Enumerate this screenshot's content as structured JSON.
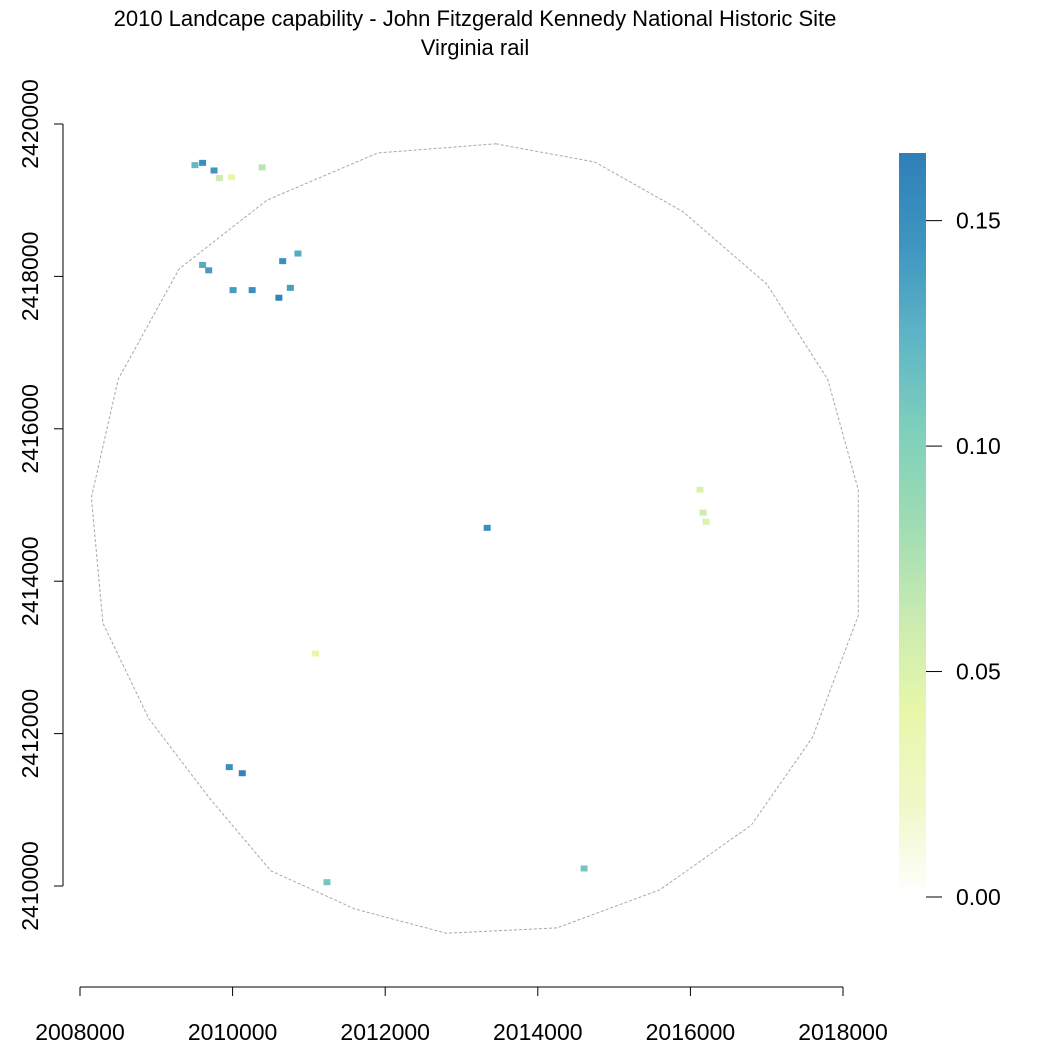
{
  "title": "2010 Landcape capability - John Fitzgerald Kennedy National Historic Site",
  "subtitle": "Virginia rail",
  "chart_data": {
    "type": "heatmap",
    "x_ticks": [
      2008000,
      2010000,
      2012000,
      2014000,
      2016000,
      2018000
    ],
    "y_ticks": [
      2410000,
      2412000,
      2414000,
      2416000,
      2418000,
      2420000
    ],
    "xlim": [
      2008000,
      2018000
    ],
    "ylim": [
      2410000,
      2420000
    ],
    "legend": {
      "position": "right",
      "min": 0.0,
      "max": 0.165,
      "ticks": [
        0.0,
        0.05,
        0.1,
        0.15
      ],
      "tick_labels": [
        "0.00",
        "0.05",
        "0.10",
        "0.15"
      ],
      "colors": [
        "#ffffff",
        "#f0f8c8",
        "#e7f7aa",
        "#c9ebb1",
        "#9fdcb3",
        "#7fd0bb",
        "#5fb5c6",
        "#3f95c0",
        "#2f7fb8"
      ]
    },
    "boundary": [
      [
        2013450,
        2419740
      ],
      [
        2014750,
        2419500
      ],
      [
        2015900,
        2418850
      ],
      [
        2017000,
        2417900
      ],
      [
        2017800,
        2416650
      ],
      [
        2018200,
        2415200
      ],
      [
        2018200,
        2413550
      ],
      [
        2017600,
        2411950
      ],
      [
        2016800,
        2410800
      ],
      [
        2015600,
        2409950
      ],
      [
        2014250,
        2409450
      ],
      [
        2012800,
        2409380
      ],
      [
        2011600,
        2409700
      ],
      [
        2010500,
        2410200
      ],
      [
        2009700,
        2411150
      ],
      [
        2008900,
        2412200
      ],
      [
        2008300,
        2413450
      ],
      [
        2008150,
        2415100
      ],
      [
        2008500,
        2416650
      ],
      [
        2009300,
        2418100
      ],
      [
        2010450,
        2419000
      ],
      [
        2011900,
        2419620
      ]
    ],
    "patches": [
      {
        "x": 2009600,
        "y": 2419490,
        "value": 0.15
      },
      {
        "x": 2009750,
        "y": 2419390,
        "value": 0.145
      },
      {
        "x": 2009500,
        "y": 2419460,
        "value": 0.12
      },
      {
        "x": 2009980,
        "y": 2419300,
        "value": 0.04
      },
      {
        "x": 2009820,
        "y": 2419290,
        "value": 0.06
      },
      {
        "x": 2010380,
        "y": 2419430,
        "value": 0.07
      },
      {
        "x": 2009600,
        "y": 2418150,
        "value": 0.13
      },
      {
        "x": 2009680,
        "y": 2418080,
        "value": 0.14
      },
      {
        "x": 2010250,
        "y": 2417820,
        "value": 0.15
      },
      {
        "x": 2010000,
        "y": 2417820,
        "value": 0.14
      },
      {
        "x": 2010650,
        "y": 2418200,
        "value": 0.15
      },
      {
        "x": 2010850,
        "y": 2418300,
        "value": 0.13
      },
      {
        "x": 2010600,
        "y": 2417720,
        "value": 0.16
      },
      {
        "x": 2010750,
        "y": 2417850,
        "value": 0.14
      },
      {
        "x": 2013330,
        "y": 2414700,
        "value": 0.15
      },
      {
        "x": 2016120,
        "y": 2415200,
        "value": 0.05
      },
      {
        "x": 2016160,
        "y": 2414900,
        "value": 0.06
      },
      {
        "x": 2016200,
        "y": 2414780,
        "value": 0.05
      },
      {
        "x": 2011080,
        "y": 2413050,
        "value": 0.04
      },
      {
        "x": 2009950,
        "y": 2411560,
        "value": 0.15
      },
      {
        "x": 2010120,
        "y": 2411480,
        "value": 0.16
      },
      {
        "x": 2011230,
        "y": 2410050,
        "value": 0.11
      },
      {
        "x": 2014600,
        "y": 2410230,
        "value": 0.11
      }
    ]
  }
}
